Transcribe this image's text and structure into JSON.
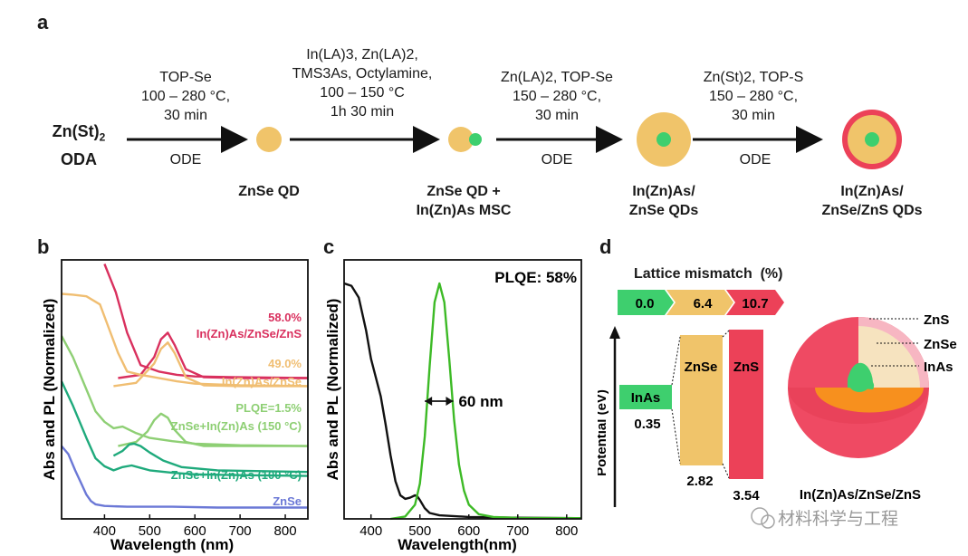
{
  "panel_a": {
    "label": "a",
    "start_reagent_l1": "Zn(St)",
    "start_reagent_l1_sub": "2",
    "start_reagent_l2": "ODA",
    "arrows": [
      {
        "above_lines": [
          "TOP-Se",
          "100 – 280 °C,",
          "30 min"
        ],
        "below": "ODE"
      },
      {
        "above_lines": [
          "In(LA)3, Zn(LA)2,",
          "TMS3As, Octylamine,",
          "100 – 150 °C",
          "1h 30 min"
        ],
        "below": ""
      },
      {
        "above_lines": [
          "Zn(LA)2, TOP-Se",
          "150 – 280 °C,",
          "30 min"
        ],
        "below": "ODE"
      },
      {
        "above_lines": [
          "Zn(St)2, TOP-S",
          "150 – 280 °C,",
          "30 min"
        ],
        "below": "ODE"
      }
    ],
    "products": [
      {
        "lines": [
          "ZnSe QD"
        ]
      },
      {
        "lines": [
          "ZnSe QD +",
          "In(Zn)As MSC"
        ]
      },
      {
        "lines": [
          "In(Zn)As/",
          "ZnSe QDs"
        ]
      },
      {
        "lines": [
          "In(Zn)As/",
          "ZnSe/ZnS QDs"
        ]
      }
    ]
  },
  "panel_b": {
    "label": "b",
    "chart_data": {
      "type": "line",
      "title": "",
      "xlabel": "Wavelength (nm)",
      "ylabel": "Abs and PL (Normalized)",
      "xlim": [
        305,
        850
      ],
      "x_ticks": [
        400,
        500,
        600,
        700,
        800
      ],
      "x_tick_labels": [
        "400",
        "500",
        "600",
        "700",
        "800"
      ],
      "series": [
        {
          "name": "In(Zn)As/ZnSe/ZnS Abs",
          "color": "#d9305e",
          "x": [
            400,
            425,
            450,
            480,
            520,
            560,
            600,
            700,
            850
          ],
          "y": [
            555,
            520,
            470,
            430,
            422,
            418,
            416,
            415,
            414
          ]
        },
        {
          "name": "In(Zn)As/ZnSe/ZnS PL",
          "color": "#d9305e",
          "x": [
            430,
            480,
            510,
            525,
            540,
            555,
            580,
            620,
            700,
            850
          ],
          "y": [
            414,
            418,
            440,
            462,
            470,
            455,
            425,
            415,
            414,
            414
          ]
        },
        {
          "name": "In(Zn)As/ZnSe Abs",
          "color": "#f0be72",
          "x": [
            305,
            330,
            360,
            390,
            410,
            430,
            450,
            480,
            510,
            560,
            600,
            700,
            850
          ],
          "y": [
            518,
            517,
            515,
            505,
            475,
            445,
            422,
            418,
            415,
            410,
            407,
            405,
            404
          ]
        },
        {
          "name": "In(Zn)As/ZnSe PL",
          "color": "#f0be72",
          "x": [
            420,
            470,
            510,
            525,
            540,
            555,
            580,
            620,
            700,
            850
          ],
          "y": [
            404,
            408,
            432,
            450,
            458,
            445,
            415,
            405,
            404,
            404
          ]
        },
        {
          "name": "ZnSe+In(Zn)As (150 °C) Abs",
          "color": "#8ecf74",
          "x": [
            305,
            330,
            360,
            380,
            400,
            420,
            440,
            470,
            500,
            550,
            600,
            700,
            850
          ],
          "y": [
            466,
            440,
            400,
            373,
            360,
            352,
            354,
            346,
            340,
            336,
            333,
            331,
            330
          ]
        },
        {
          "name": "ZnSe+In(Zn)As (150 °C) PL",
          "color": "#8ecf74",
          "x": [
            430,
            470,
            495,
            510,
            525,
            540,
            555,
            580,
            620,
            700,
            850
          ],
          "y": [
            330,
            335,
            348,
            362,
            370,
            365,
            350,
            335,
            330,
            330,
            330
          ]
        },
        {
          "name": "ZnSe+In(Zn)As (100 °C) Abs",
          "color": "#1faa7c",
          "x": [
            305,
            330,
            360,
            380,
            400,
            420,
            440,
            460,
            480,
            500,
            550,
            600,
            700,
            850
          ],
          "y": [
            410,
            380,
            340,
            315,
            305,
            300,
            304,
            306,
            303,
            300,
            297,
            295,
            294,
            293
          ]
        },
        {
          "name": "ZnSe+In(Zn)As (100 °C) PL",
          "color": "#1faa7c",
          "x": [
            420,
            440,
            455,
            465,
            480,
            500,
            530,
            570,
            650,
            850
          ],
          "y": [
            318,
            324,
            332,
            333,
            330,
            322,
            312,
            304,
            300,
            298
          ]
        },
        {
          "name": "ZnSe Abs",
          "color": "#6b78d6",
          "x": [
            305,
            320,
            335,
            350,
            360,
            370,
            380,
            400,
            450,
            550,
            650,
            850
          ],
          "y": [
            330,
            320,
            300,
            282,
            270,
            262,
            258,
            256,
            255,
            255,
            254,
            254
          ]
        }
      ],
      "annotations": [
        {
          "text": "58.0%",
          "color": "#d9305e"
        },
        {
          "text": "In(Zn)As/ZnSe/ZnS",
          "color": "#d9305e"
        },
        {
          "text": "49.0%",
          "color": "#f0be72"
        },
        {
          "text": "In(Zn)As/ZnSe",
          "color": "#f0be72"
        },
        {
          "text": "PLQE=1.5%",
          "color": "#8ecf74"
        },
        {
          "text": "ZnSe+In(Zn)As (150 °C)",
          "color": "#8ecf74"
        },
        {
          "text": "ZnSe+In(Zn)As (100 °C)",
          "color": "#1faa7c"
        },
        {
          "text": "ZnSe",
          "color": "#6b78d6"
        }
      ]
    }
  },
  "panel_c": {
    "label": "c",
    "chart_data": {
      "type": "line",
      "title": "PLQE: 58%",
      "xlabel": "Wavelength(nm)",
      "ylabel": "Abs and PL (Normalized)",
      "xlim": [
        345,
        830
      ],
      "ylim": [
        0,
        1.1
      ],
      "x_ticks": [
        400,
        500,
        600,
        700,
        800
      ],
      "x_tick_labels": [
        "400",
        "500",
        "600",
        "700",
        "800"
      ],
      "series": [
        {
          "name": "Abs",
          "color": "#111111",
          "x": [
            345,
            360,
            375,
            390,
            400,
            410,
            420,
            430,
            440,
            450,
            460,
            470,
            480,
            490,
            495,
            500,
            510,
            520,
            540,
            600,
            700,
            830
          ],
          "y": [
            1.0,
            0.99,
            0.94,
            0.8,
            0.68,
            0.6,
            0.52,
            0.4,
            0.27,
            0.16,
            0.1,
            0.085,
            0.09,
            0.1,
            0.095,
            0.08,
            0.045,
            0.025,
            0.015,
            0.008,
            0.005,
            0.003
          ]
        },
        {
          "name": "PL",
          "color": "#3dba26",
          "x": [
            440,
            470,
            490,
            500,
            510,
            520,
            530,
            540,
            550,
            560,
            570,
            580,
            590,
            600,
            620,
            650,
            700,
            830
          ],
          "y": [
            0.0,
            0.01,
            0.06,
            0.15,
            0.35,
            0.65,
            0.92,
            1.0,
            0.92,
            0.68,
            0.42,
            0.23,
            0.12,
            0.06,
            0.02,
            0.008,
            0.004,
            0.003
          ]
        }
      ],
      "annotations": [
        {
          "text": "60 nm",
          "kind": "fwhm",
          "x_from": 510,
          "x_to": 568,
          "y": 0.5
        }
      ]
    }
  },
  "panel_d": {
    "label": "d",
    "lattice_title": "Lattice mismatch  (%)",
    "lattice_values": [
      {
        "text": "0.0",
        "color": "#3ecf6e"
      },
      {
        "text": "6.4",
        "color": "#f0c46a"
      },
      {
        "text": "10.7",
        "color": "#ec4158"
      }
    ],
    "y_axis_label": "Potential (eV)",
    "bands": [
      {
        "name": "InAs",
        "value": "0.35",
        "color": "#3ecf6e"
      },
      {
        "name": "ZnSe",
        "value": "2.82",
        "color": "#f0c46a"
      },
      {
        "name": "ZnS",
        "value": "3.54",
        "color": "#ec4158"
      }
    ],
    "sphere_labels": [
      "ZnS",
      "ZnSe",
      "InAs"
    ],
    "caption": "In(Zn)As/ZnSe/ZnS",
    "watermark": "材料科学与工程"
  }
}
